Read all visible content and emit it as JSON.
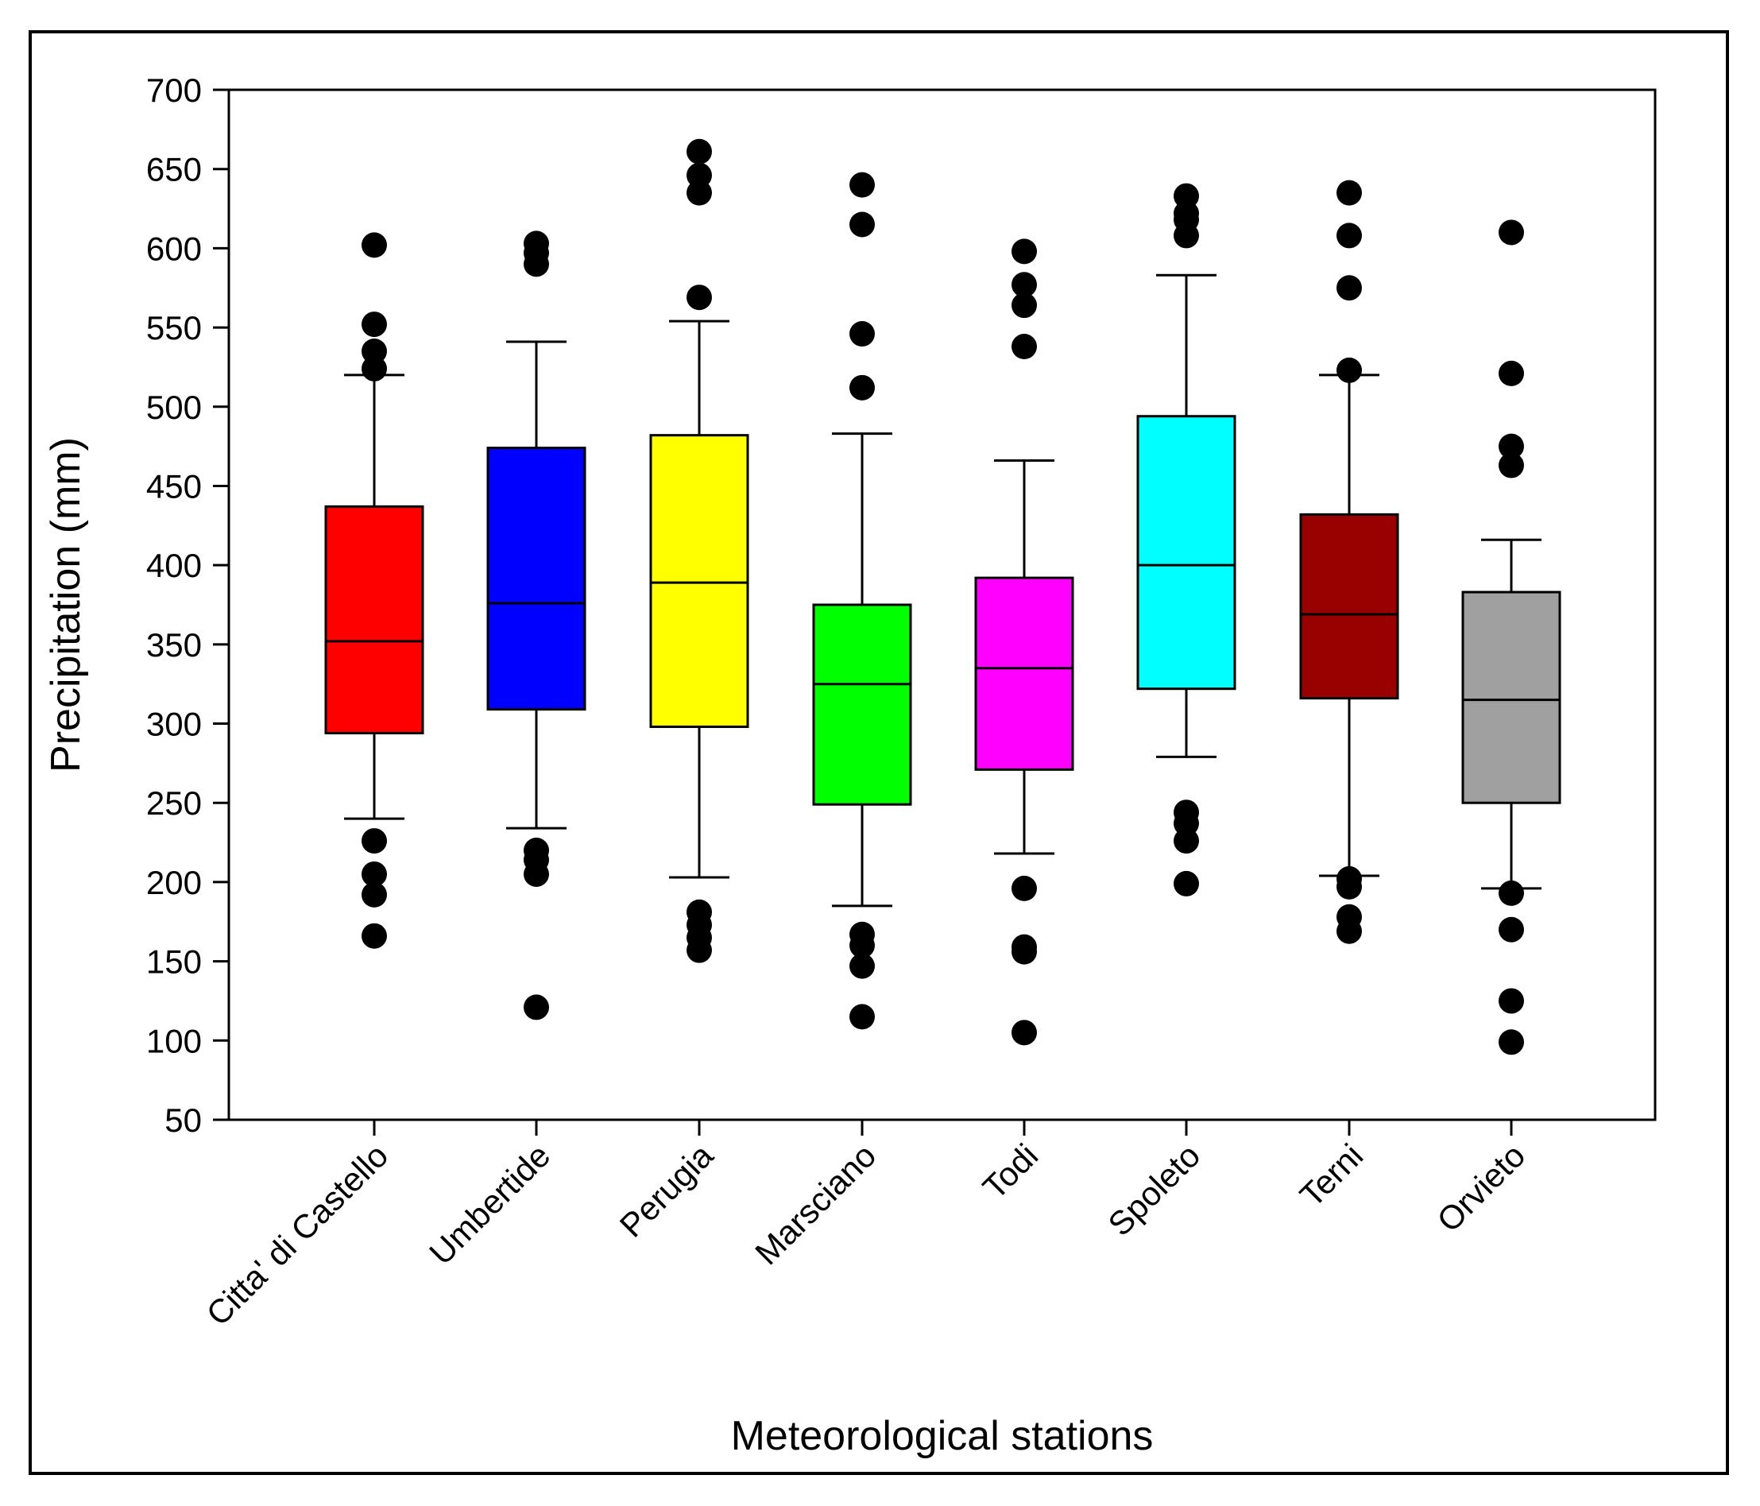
{
  "chart_data": {
    "type": "boxplot",
    "title": "",
    "xlabel": "Meteorological stations",
    "ylabel": "Precipitation (mm)",
    "ylim": [
      50,
      700
    ],
    "yticks": [
      50,
      100,
      150,
      200,
      250,
      300,
      350,
      400,
      450,
      500,
      550,
      600,
      650,
      700
    ],
    "grid": false,
    "categories": [
      "Citta' di Castello",
      "Umbertide",
      "Perugia",
      "Marsciano",
      "Todi",
      "Spoleto",
      "Terni",
      "Orvieto"
    ],
    "series": [
      {
        "name": "Citta' di Castello",
        "color": "#ff0000",
        "median_color": "#000000",
        "whisker_low": 240,
        "q1": 294,
        "median": 352,
        "q3": 437,
        "whisker_high": 520,
        "outliers": [
          602,
          552,
          535,
          524,
          226,
          205,
          192,
          166
        ]
      },
      {
        "name": "Umbertide",
        "color": "#0000ff",
        "median_color": "#000000",
        "whisker_low": 234,
        "q1": 309,
        "median": 376,
        "q3": 474,
        "whisker_high": 541,
        "outliers": [
          603,
          597,
          590,
          220,
          214,
          205,
          121
        ]
      },
      {
        "name": "Perugia",
        "color": "#ffff00",
        "median_color": "#000000",
        "whisker_low": 203,
        "q1": 298,
        "median": 389,
        "q3": 482,
        "whisker_high": 554,
        "outliers": [
          661,
          646,
          635,
          569,
          181,
          173,
          165,
          157
        ]
      },
      {
        "name": "Marsciano",
        "color": "#00ff00",
        "median_color": "#000000",
        "whisker_low": 185,
        "q1": 249,
        "median": 325,
        "q3": 375,
        "whisker_high": 483,
        "outliers": [
          640,
          615,
          546,
          512,
          167,
          160,
          147,
          115
        ]
      },
      {
        "name": "Todi",
        "color": "#ff00ff",
        "median_color": "#000000",
        "whisker_low": 218,
        "q1": 271,
        "median": 335,
        "q3": 392,
        "whisker_high": 466,
        "outliers": [
          598,
          577,
          564,
          538,
          196,
          159,
          156,
          105
        ]
      },
      {
        "name": "Spoleto",
        "color": "#00ffff",
        "median_color": "#000000",
        "whisker_low": 279,
        "q1": 322,
        "median": 400,
        "q3": 494,
        "whisker_high": 583,
        "outliers": [
          633,
          622,
          618,
          608,
          244,
          237,
          226,
          199
        ]
      },
      {
        "name": "Terni",
        "color": "#990000",
        "median_color": "#000000",
        "whisker_low": 204,
        "q1": 316,
        "median": 369,
        "q3": 432,
        "whisker_high": 520,
        "outliers": [
          635,
          608,
          575,
          523,
          202,
          197,
          178,
          169
        ]
      },
      {
        "name": "Orvieto",
        "color": "#a0a0a0",
        "median_color": "#000000",
        "whisker_low": 196,
        "q1": 250,
        "median": 315,
        "q3": 383,
        "whisker_high": 416,
        "outliers": [
          610,
          521,
          475,
          463,
          193,
          170,
          125,
          99
        ]
      }
    ]
  }
}
